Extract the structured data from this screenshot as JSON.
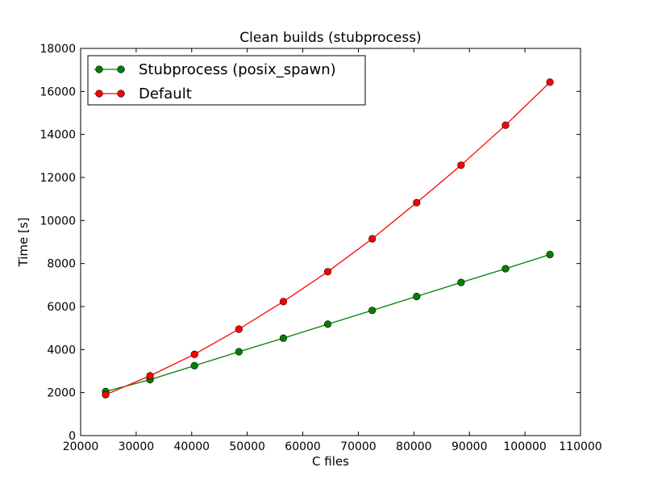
{
  "chart_data": {
    "type": "line",
    "title": "Clean builds (stubprocess)",
    "xlabel": "C files",
    "ylabel": "Time [s]",
    "xlim": [
      20000,
      110000
    ],
    "ylim": [
      0,
      18000
    ],
    "xticks": [
      20000,
      30000,
      40000,
      50000,
      60000,
      70000,
      80000,
      90000,
      100000,
      110000
    ],
    "yticks": [
      0,
      2000,
      4000,
      6000,
      8000,
      10000,
      12000,
      14000,
      16000,
      18000
    ],
    "x": [
      24500,
      32500,
      40500,
      48500,
      56500,
      64500,
      72500,
      80500,
      88500,
      96500,
      104500
    ],
    "legend_position": "upper-left",
    "grid": false,
    "series": [
      {
        "name": "Stubprocess (posix_spawn)",
        "color": "#008000",
        "values": [
          2050,
          2600,
          3250,
          3900,
          4530,
          5180,
          5820,
          6470,
          7120,
          7760,
          8420
        ]
      },
      {
        "name": "Default",
        "color": "#ff0000",
        "values": [
          1900,
          2780,
          3780,
          4950,
          6230,
          7620,
          9150,
          10830,
          12570,
          14430,
          16430
        ]
      }
    ]
  }
}
